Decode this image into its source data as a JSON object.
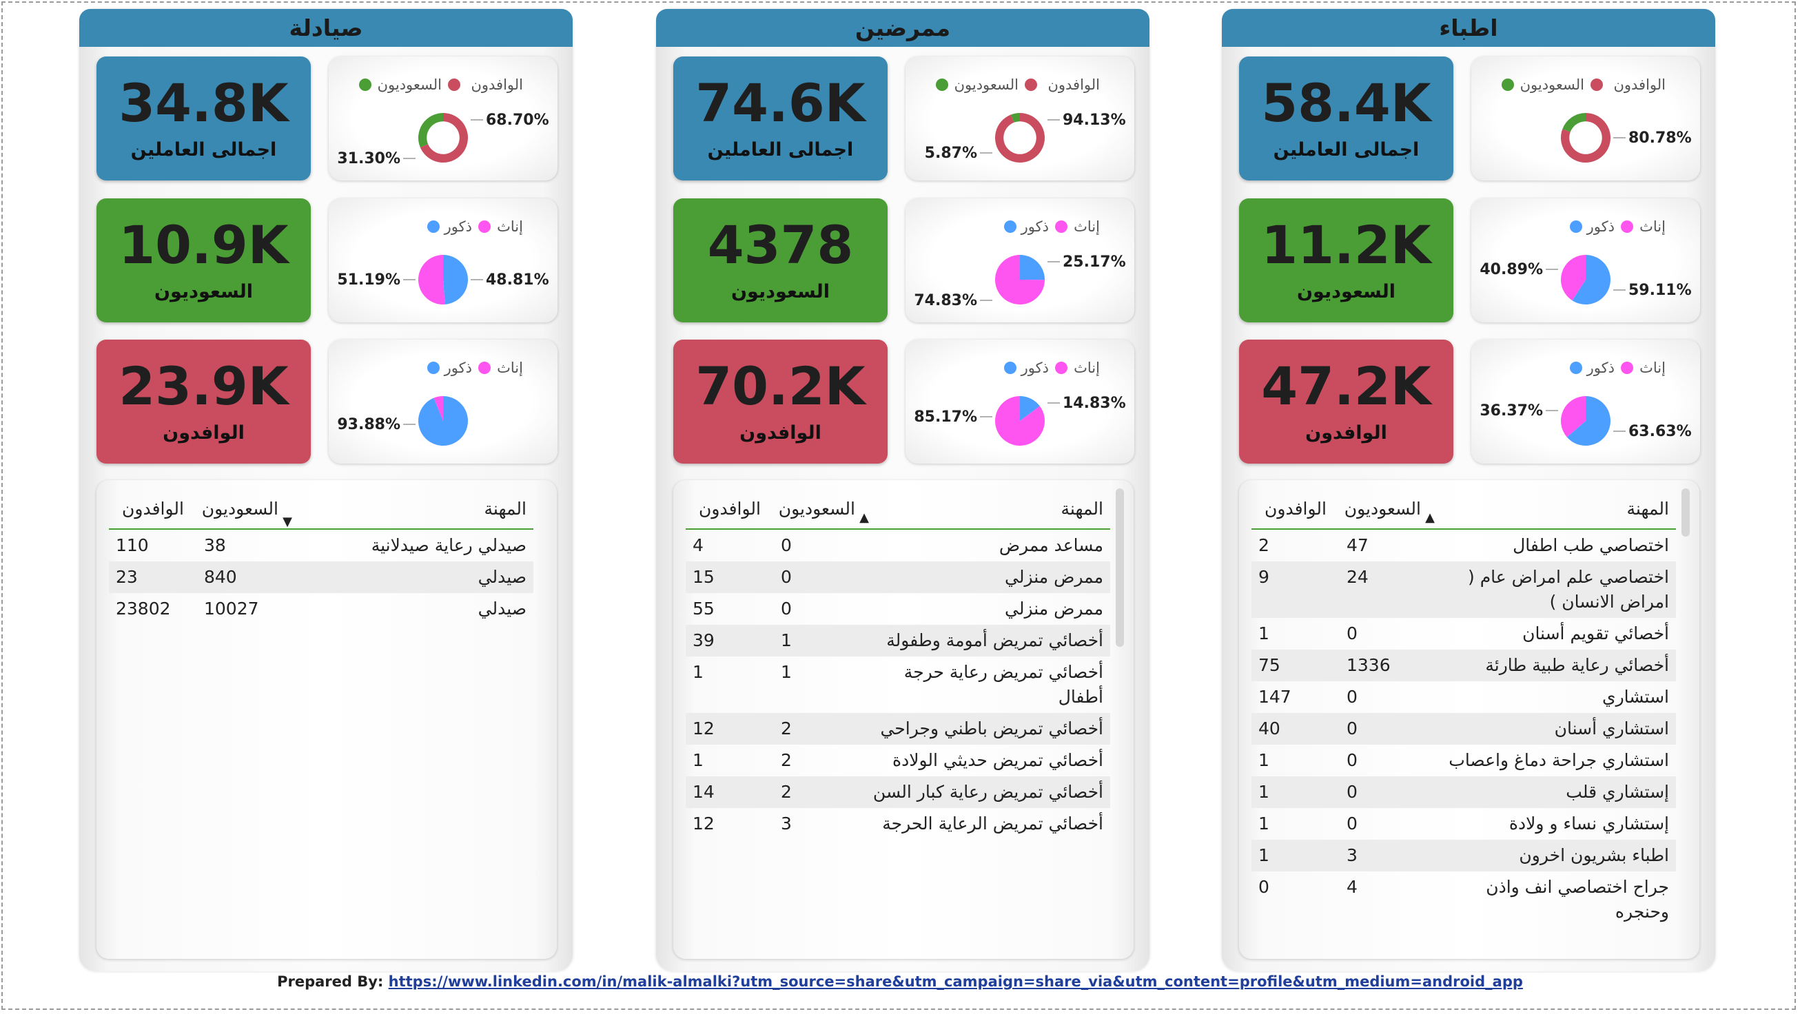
{
  "colors": {
    "total": "#3a89b3",
    "saudi": "#4b9d35",
    "expat": "#c94d5e",
    "female": "#ff55f0",
    "male": "#4d9fff",
    "ring_saudi": "#4b9d35",
    "ring_expat": "#c94d5e"
  },
  "panels": [
    {
      "title": "صيادلة",
      "kpi": {
        "total": "34.8K",
        "total_label": "اجمالى العاملين",
        "saudi": "10.9K",
        "saudi_label": "السعوديون",
        "expat": "23.9K",
        "expat_label": "الوافدون"
      },
      "nationality": {
        "legend_expat": "الوافدون",
        "legend_saudi": "السعوديون",
        "expat_pct": 68.7,
        "saudi_pct": 31.3,
        "expat_label": "68.70%",
        "saudi_label": "31.30%"
      },
      "gender_saudi": {
        "legend_female": "إناث",
        "legend_male": "ذكور",
        "female_pct": 51.19,
        "male_pct": 48.81,
        "female_label": "51.19%",
        "male_label": "48.81%"
      },
      "gender_expat": {
        "legend_female": "إناث",
        "legend_male": "ذكور",
        "female_pct": 6.12,
        "male_pct": 93.88,
        "female_label": "",
        "male_label": "93.88%"
      },
      "table": {
        "headers": [
          "المهنة",
          "السعوديون",
          "الوافدون"
        ],
        "rows": [
          [
            "صيدلي رعاية صيدلانية",
            "38",
            "110"
          ],
          [
            "صيدلي",
            "840",
            "23"
          ],
          [
            "صيدلي",
            "10027",
            "23802"
          ]
        ]
      }
    },
    {
      "title": "ممرضين",
      "kpi": {
        "total": "74.6K",
        "total_label": "اجمالى العاملين",
        "saudi": "4378",
        "saudi_label": "السعوديون",
        "expat": "70.2K",
        "expat_label": "الوافدون"
      },
      "nationality": {
        "legend_expat": "الوافدون",
        "legend_saudi": "السعوديون",
        "expat_pct": 94.13,
        "saudi_pct": 5.87,
        "expat_label": "94.13%",
        "saudi_label": "5.87%"
      },
      "gender_saudi": {
        "legend_female": "إناث",
        "legend_male": "ذكور",
        "female_pct": 74.83,
        "male_pct": 25.17,
        "female_label": "74.83%",
        "male_label": "25.17%"
      },
      "gender_expat": {
        "legend_female": "إناث",
        "legend_male": "ذكور",
        "female_pct": 85.17,
        "male_pct": 14.83,
        "female_label": "85.17%",
        "male_label": "14.83%"
      },
      "table": {
        "headers": [
          "المهنة",
          "السعوديون",
          "الوافدون"
        ],
        "rows": [
          [
            "مساعد ممرض",
            "0",
            "4"
          ],
          [
            "ممرض منزلي",
            "0",
            "15"
          ],
          [
            "ممرض منزلي",
            "0",
            "55"
          ],
          [
            "أخصائي تمريض أمومة وطفولة",
            "1",
            "39"
          ],
          [
            "أخصائي تمريض رعاية حرجة أطفال",
            "1",
            "1"
          ],
          [
            "أخصائي تمريض باطني وجراحي",
            "2",
            "12"
          ],
          [
            "أخصائي تمريض حديثي الولادة",
            "2",
            "1"
          ],
          [
            "أخصائي تمريض رعاية كبار السن",
            "2",
            "14"
          ],
          [
            "أخصائي تمريض الرعاية الحرجة",
            "3",
            "12"
          ]
        ]
      }
    },
    {
      "title": "اطباء",
      "kpi": {
        "total": "58.4K",
        "total_label": "اجمالى العاملين",
        "saudi": "11.2K",
        "saudi_label": "السعوديون",
        "expat": "47.2K",
        "expat_label": "الوافدون"
      },
      "nationality": {
        "legend_expat": "الوافدون",
        "legend_saudi": "السعوديون",
        "expat_pct": 80.78,
        "saudi_pct": 19.22,
        "expat_label": "80.78%",
        "saudi_label": ""
      },
      "gender_saudi": {
        "legend_female": "إناث",
        "legend_male": "ذكور",
        "female_pct": 40.89,
        "male_pct": 59.11,
        "female_label": "40.89%",
        "male_label": "59.11%"
      },
      "gender_expat": {
        "legend_female": "إناث",
        "legend_male": "ذكور",
        "female_pct": 36.37,
        "male_pct": 63.63,
        "female_label": "36.37%",
        "male_label": "63.63%"
      },
      "table": {
        "headers": [
          "المهنة",
          "السعوديون",
          "الوافدون"
        ],
        "rows": [
          [
            "اختصاصي طب اطفال",
            "47",
            "2"
          ],
          [
            "اختصاصي علم امراض عام ( امراض الانسان )",
            "24",
            "9"
          ],
          [
            "أخصائي تقويم أسنان",
            "0",
            "1"
          ],
          [
            "أخصائي رعاية طبية طارئة",
            "1336",
            "75"
          ],
          [
            "استشاري",
            "0",
            "147"
          ],
          [
            "استشاري أسنان",
            "0",
            "40"
          ],
          [
            "استشاري جراحة دماغ واعصاب",
            "0",
            "1"
          ],
          [
            "إستشاري قلب",
            "0",
            "1"
          ],
          [
            "إستشاري نساء و ولادة",
            "0",
            "1"
          ],
          [
            "اطباء بشريون اخرون",
            "3",
            "1"
          ],
          [
            "جراح اختصاصي انف واذن وحنجره",
            "4",
            "0"
          ]
        ]
      }
    }
  ],
  "footer": {
    "prefix": "Prepared By: ",
    "link": "https://www.linkedin.com/in/malik-almalki?utm_source=share&utm_campaign=share_via&utm_content=profile&utm_medium=android_app"
  }
}
